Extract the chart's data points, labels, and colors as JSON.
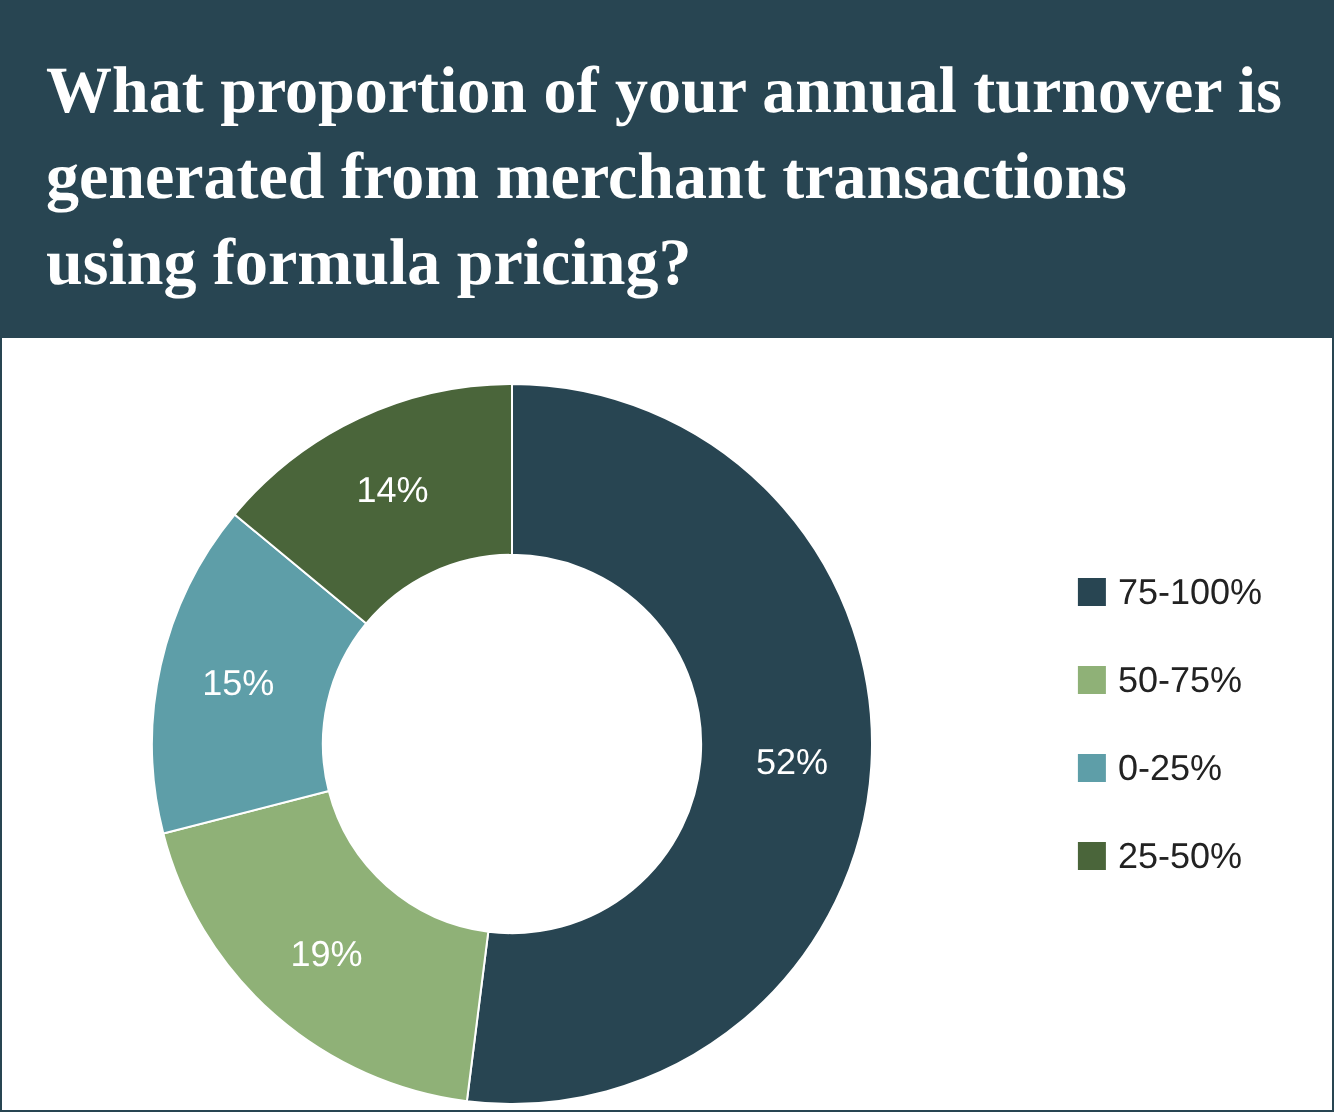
{
  "chart_data": {
    "type": "donut",
    "title": "What proportion of your annual turnover is generated from merchant transactions using formula pricing?",
    "categories": [
      "75-100%",
      "50-75%",
      "0-25%",
      "25-50%"
    ],
    "values": [
      52,
      19,
      15,
      14
    ],
    "colors": [
      "#284552",
      "#8fb177",
      "#5e9ea8",
      "#4a653a"
    ],
    "value_labels": [
      "52%",
      "19%",
      "15%",
      "14%"
    ],
    "legend": "right"
  }
}
